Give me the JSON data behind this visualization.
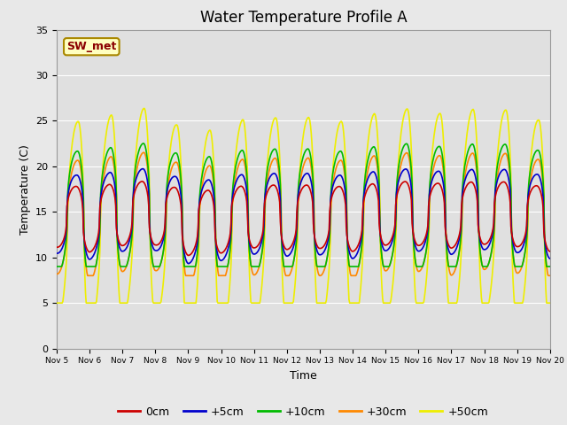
{
  "title": "Water Temperature Profile A",
  "xlabel": "Time",
  "ylabel": "Temperature (C)",
  "ylim": [
    0,
    35
  ],
  "x_tick_labels": [
    "Nov 5",
    "Nov 6",
    "Nov 7",
    "Nov 8",
    "Nov 9",
    "Nov 10",
    "Nov 11",
    "Nov 12",
    "Nov 13",
    "Nov 14",
    "Nov 15",
    "Nov 16",
    "Nov 17",
    "Nov 18",
    "Nov 19",
    "Nov 20"
  ],
  "annotation_text": "SW_met",
  "fig_bg_color": "#e8e8e8",
  "plot_bg_color": "#e0e0e0",
  "lines": {
    "0cm": {
      "color": "#cc0000",
      "lw": 1.2
    },
    "+5cm": {
      "color": "#0000cc",
      "lw": 1.2
    },
    "+10cm": {
      "color": "#00bb00",
      "lw": 1.2
    },
    "+30cm": {
      "color": "#ff8800",
      "lw": 1.2
    },
    "+50cm": {
      "color": "#eeee00",
      "lw": 1.2
    }
  },
  "legend_labels": [
    "0cm",
    "+5cm",
    "+10cm",
    "+30cm",
    "+50cm"
  ],
  "legend_colors": [
    "#cc0000",
    "#0000cc",
    "#00bb00",
    "#ff8800",
    "#eeee00"
  ],
  "grid_color": "#ffffff",
  "title_fontsize": 12,
  "figsize": [
    6.4,
    4.8
  ],
  "dpi": 100
}
